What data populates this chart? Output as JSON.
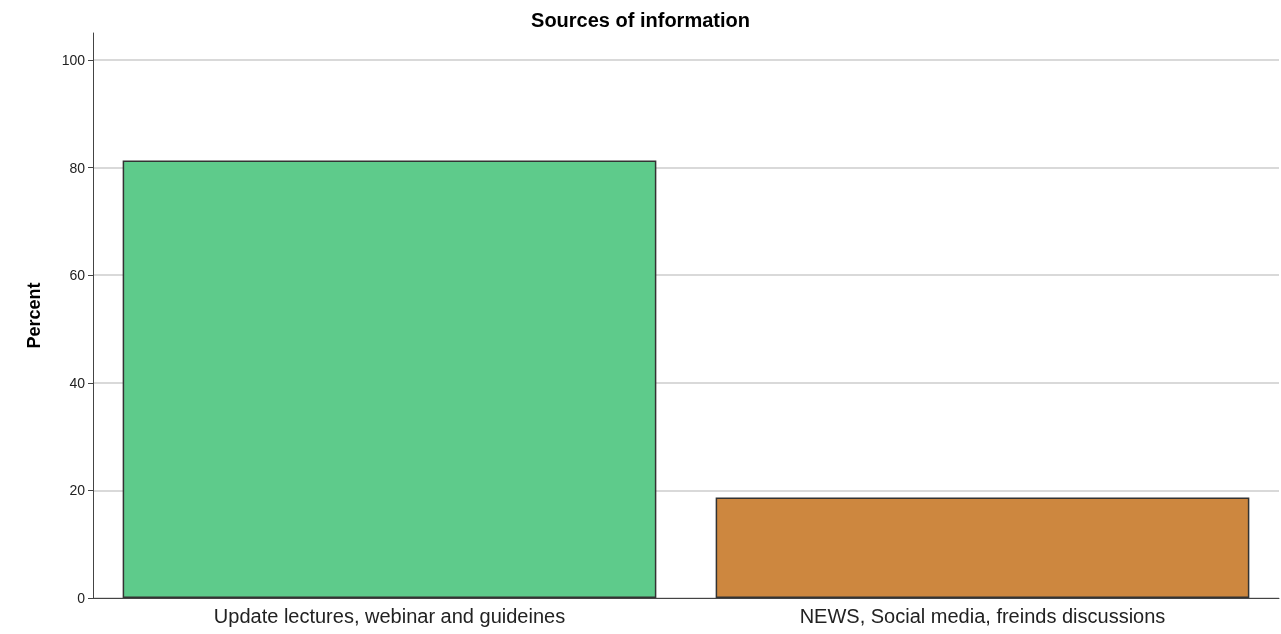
{
  "chart_data": {
    "type": "bar",
    "title": "Sources of information",
    "ylabel": "Percent",
    "categories": [
      "Update lectures, webinar and guideines",
      "NEWS, Social media, freinds discussions"
    ],
    "values": [
      81.3,
      18.7
    ],
    "colors": [
      "#5ecb8b",
      "#cd873f"
    ],
    "ylim": [
      0,
      105
    ],
    "yticks": [
      0,
      20,
      40,
      60,
      80,
      100
    ],
    "grid": "y"
  }
}
